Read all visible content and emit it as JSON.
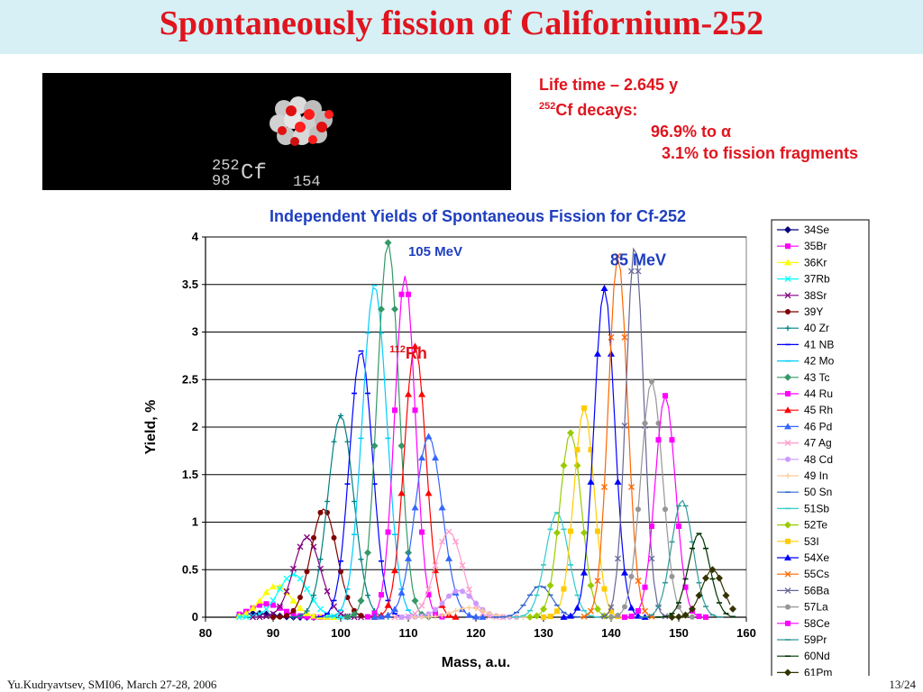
{
  "slide": {
    "title": "Spontaneously fission of Californium-252",
    "footer_left": "Yu.Kudryavtsev, SMI06, March 27-28, 2006",
    "page": "13/24"
  },
  "image": {
    "label_top": "252",
    "label_bottom": "98",
    "label_symbol": "Cf",
    "label_neutrons": "154"
  },
  "info": {
    "line1": "Life time – 2.645 y",
    "line2_sup": "252",
    "line2": "Cf decays:",
    "line3": "96.9% to α",
    "line4": "3.1% to fission fragments"
  },
  "colors": {
    "title": "#e0141e",
    "chart_title": "#1f3fbf",
    "annotation_red": "#e0141e"
  },
  "chart_data": {
    "type": "line",
    "title": "Independent Yields of Spontaneous Fission for Cf-252",
    "xlabel": "Mass, a.u.",
    "ylabel": "Yield, %",
    "xlim": [
      80,
      160
    ],
    "ylim": [
      0,
      4
    ],
    "xticks": [
      80,
      90,
      100,
      110,
      120,
      130,
      140,
      150,
      160
    ],
    "yticks": [
      0,
      0.5,
      1,
      1.5,
      2,
      2.5,
      3,
      3.5,
      4
    ],
    "ytick_labels": [
      "0",
      "0.5",
      "1",
      "1.5",
      "2",
      "2.5",
      "3",
      "3.5",
      "4"
    ],
    "grid": true,
    "legend": "right",
    "annotations": [
      {
        "text": "105 MeV",
        "x": 114,
        "y": 3.8,
        "color": "#1f3fbf"
      },
      {
        "text": "85 MeV",
        "x": 144,
        "y": 3.7,
        "color": "#1f3fbf"
      },
      {
        "text": "Rh",
        "sup": "112",
        "x": 110,
        "y": 2.72,
        "color": "#e0141e"
      }
    ],
    "series": [
      {
        "name": "34Se",
        "color": "#000080",
        "marker": "diamond",
        "peak_x": 87.5,
        "peak_y": 0.04,
        "sigma": 2.2
      },
      {
        "name": "35Br",
        "color": "#ff00ff",
        "marker": "square",
        "peak_x": 89,
        "peak_y": 0.14,
        "sigma": 2.3
      },
      {
        "name": "36Kr",
        "color": "#ffff00",
        "marker": "triangle",
        "peak_x": 90.5,
        "peak_y": 0.33,
        "sigma": 2.2
      },
      {
        "name": "37Rb",
        "color": "#00ffff",
        "marker": "x",
        "peak_x": 93,
        "peak_y": 0.45,
        "sigma": 2.2
      },
      {
        "name": "38Sr",
        "color": "#800080",
        "marker": "star",
        "peak_x": 95,
        "peak_y": 0.84,
        "sigma": 2.0
      },
      {
        "name": "39Y",
        "color": "#800000",
        "marker": "circle",
        "peak_x": 97.5,
        "peak_y": 1.14,
        "sigma": 1.9
      },
      {
        "name": "40 Zr",
        "color": "#008080",
        "marker": "plus",
        "peak_x": 100,
        "peak_y": 2.12,
        "sigma": 1.9
      },
      {
        "name": "41 NB",
        "color": "#0000ff",
        "marker": "dash",
        "peak_x": 103,
        "peak_y": 2.8,
        "sigma": 1.7
      },
      {
        "name": "42 Mo",
        "color": "#00ccff",
        "marker": "dash",
        "peak_x": 105,
        "peak_y": 3.49,
        "sigma": 1.8
      },
      {
        "name": "43 Tc",
        "color": "#339966",
        "marker": "diamond",
        "peak_x": 107,
        "peak_y": 3.94,
        "sigma": 1.6
      },
      {
        "name": "44 Ru",
        "color": "#ff00ff",
        "marker": "square",
        "peak_x": 109.5,
        "peak_y": 3.59,
        "sigma": 1.5
      },
      {
        "name": "45 Rh",
        "color": "#ff0000",
        "marker": "triangle",
        "peak_x": 111,
        "peak_y": 2.85,
        "sigma": 1.6
      },
      {
        "name": "46 Pd",
        "color": "#3366ff",
        "marker": "triangle",
        "peak_x": 113,
        "peak_y": 1.9,
        "sigma": 2.0
      },
      {
        "name": "47 Ag",
        "color": "#ff99cc",
        "marker": "x",
        "peak_x": 116,
        "peak_y": 0.9,
        "sigma": 2.0
      },
      {
        "name": "48 Cd",
        "color": "#cc99ff",
        "marker": "circle",
        "peak_x": 117.5,
        "peak_y": 0.28,
        "sigma": 2.2
      },
      {
        "name": "49 In",
        "color": "#ffcc99",
        "marker": "plus",
        "peak_x": 119,
        "peak_y": 0.1,
        "sigma": 2.2
      },
      {
        "name": "50 Sn",
        "color": "#3366cc",
        "marker": "dash",
        "peak_x": 129.5,
        "peak_y": 0.33,
        "sigma": 1.8
      },
      {
        "name": "51Sb",
        "color": "#33cccc",
        "marker": "dash",
        "peak_x": 132,
        "peak_y": 1.1,
        "sigma": 1.7
      },
      {
        "name": "52Te",
        "color": "#99cc00",
        "marker": "diamond",
        "peak_x": 134,
        "peak_y": 1.94,
        "sigma": 1.6
      },
      {
        "name": "53I",
        "color": "#ffcc00",
        "marker": "square",
        "peak_x": 136,
        "peak_y": 2.2,
        "sigma": 1.5
      },
      {
        "name": "54Xe",
        "color": "#0000ff",
        "marker": "triangle",
        "peak_x": 139,
        "peak_y": 3.46,
        "sigma": 1.5
      },
      {
        "name": "55Cs",
        "color": "#ff6600",
        "marker": "x",
        "peak_x": 141,
        "peak_y": 3.8,
        "sigma": 1.4
      },
      {
        "name": "56Ba",
        "color": "#666699",
        "marker": "star",
        "peak_x": 143.5,
        "peak_y": 3.92,
        "sigma": 1.3
      },
      {
        "name": "57La",
        "color": "#969696",
        "marker": "circle",
        "peak_x": 146,
        "peak_y": 2.48,
        "sigma": 1.6
      },
      {
        "name": "58Ce",
        "color": "#ff00ff",
        "marker": "square",
        "peak_x": 148,
        "peak_y": 2.33,
        "sigma": 1.5
      },
      {
        "name": "59Pr",
        "color": "#339999",
        "marker": "dash",
        "peak_x": 150.5,
        "peak_y": 1.23,
        "sigma": 1.6
      },
      {
        "name": "60Nd",
        "color": "#003300",
        "marker": "dash",
        "peak_x": 153,
        "peak_y": 0.88,
        "sigma": 1.6
      },
      {
        "name": "61Pm",
        "color": "#333300",
        "marker": "diamond",
        "peak_x": 155,
        "peak_y": 0.5,
        "sigma": 1.6
      }
    ]
  }
}
